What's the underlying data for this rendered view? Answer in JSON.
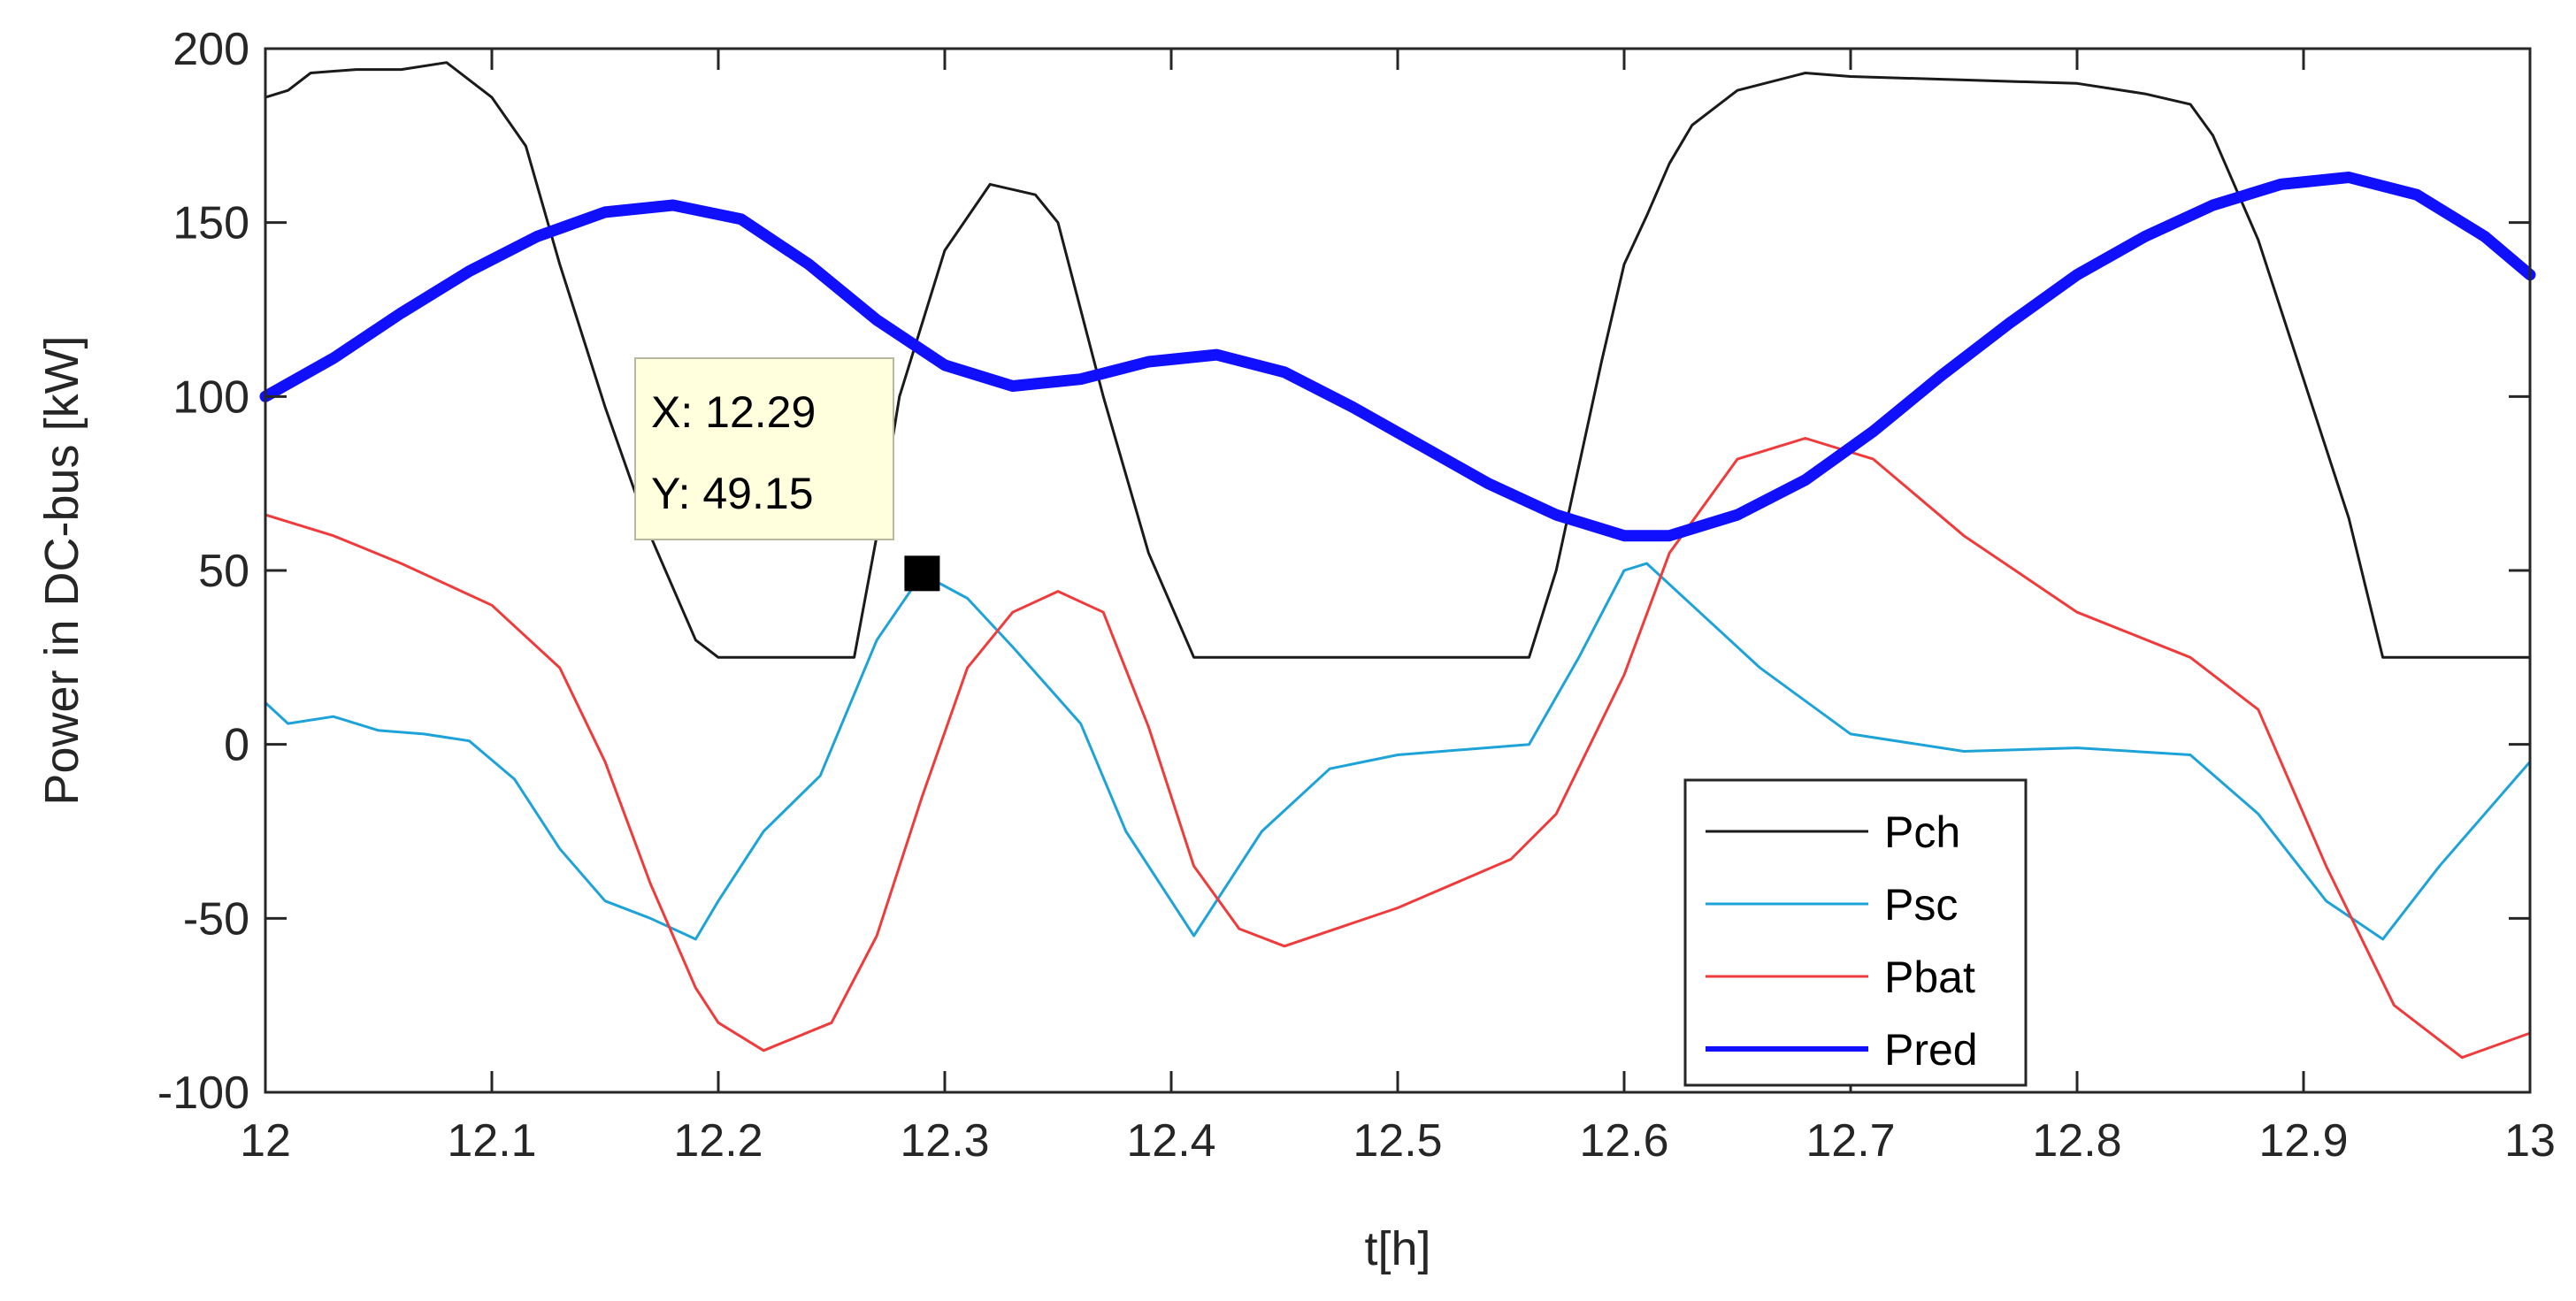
{
  "chart_data": {
    "type": "line",
    "title": "",
    "xlabel": "t[h]",
    "ylabel": "Power in DC-bus [kW]",
    "xlim": [
      12,
      13
    ],
    "ylim": [
      -100,
      200
    ],
    "xticks": [
      12,
      12.1,
      12.2,
      12.3,
      12.4,
      12.5,
      12.6,
      12.7,
      12.8,
      12.9,
      13
    ],
    "xtick_labels": [
      "12",
      "12.1",
      "12.2",
      "12.3",
      "12.4",
      "12.5",
      "12.6",
      "12.7",
      "12.8",
      "12.9",
      "13"
    ],
    "yticks": [
      -100,
      -50,
      0,
      50,
      100,
      150,
      200
    ],
    "ytick_labels": [
      "-100",
      "-50",
      "0",
      "50",
      "100",
      "150",
      "200"
    ],
    "grid": false,
    "legend_position": "bottom-right",
    "series": [
      {
        "name": "Pch",
        "color": "#1a1a1a",
        "x": [
          12.0,
          12.01,
          12.02,
          12.04,
          12.06,
          12.08,
          12.1,
          12.115,
          12.13,
          12.15,
          12.17,
          12.19,
          12.2,
          12.22,
          12.245,
          12.26,
          12.27,
          12.28,
          12.3,
          12.32,
          12.34,
          12.35,
          12.37,
          12.39,
          12.41,
          12.42,
          12.45,
          12.5,
          12.558,
          12.57,
          12.58,
          12.59,
          12.6,
          12.61,
          12.62,
          12.63,
          12.65,
          12.68,
          12.7,
          12.75,
          12.8,
          12.83,
          12.85,
          12.86,
          12.88,
          12.9,
          12.92,
          12.935,
          12.95,
          13.0
        ],
        "values": [
          186,
          188,
          193,
          194,
          194,
          196,
          186,
          172,
          138,
          97,
          60,
          30,
          25,
          25,
          25,
          25,
          60,
          100,
          142,
          161,
          158,
          150,
          100,
          55,
          25,
          25,
          25,
          25,
          25,
          50,
          80,
          110,
          138,
          152,
          167,
          178,
          188,
          193,
          192,
          191,
          190,
          187,
          184,
          175,
          145,
          105,
          65,
          25,
          25,
          25
        ]
      },
      {
        "name": "Psc",
        "color": "#1ea3d8",
        "x": [
          12.0,
          12.01,
          12.03,
          12.05,
          12.07,
          12.09,
          12.11,
          12.13,
          12.15,
          12.17,
          12.19,
          12.2,
          12.22,
          12.245,
          12.27,
          12.29,
          12.31,
          12.33,
          12.36,
          12.38,
          12.41,
          12.44,
          12.47,
          12.5,
          12.558,
          12.58,
          12.6,
          12.61,
          12.63,
          12.66,
          12.7,
          12.75,
          12.8,
          12.85,
          12.88,
          12.91,
          12.935,
          12.96,
          13.0
        ],
        "values": [
          12,
          6,
          8,
          4,
          3,
          1,
          -10,
          -30,
          -45,
          -50,
          -56,
          -45,
          -25,
          -9,
          30,
          49,
          42,
          28,
          6,
          -25,
          -55,
          -25,
          -7,
          -3,
          0,
          25,
          50,
          52,
          40,
          22,
          3,
          -2,
          -1,
          -3,
          -20,
          -45,
          -56,
          -35,
          -5
        ]
      },
      {
        "name": "Pbat",
        "color": "#ef3b3b",
        "x": [
          12.0,
          12.03,
          12.06,
          12.1,
          12.13,
          12.15,
          12.17,
          12.19,
          12.2,
          12.22,
          12.25,
          12.27,
          12.29,
          12.31,
          12.33,
          12.35,
          12.37,
          12.39,
          12.41,
          12.43,
          12.45,
          12.5,
          12.55,
          12.57,
          12.6,
          12.62,
          12.65,
          12.68,
          12.71,
          12.75,
          12.8,
          12.85,
          12.88,
          12.91,
          12.94,
          12.97,
          13.0
        ],
        "values": [
          66,
          60,
          52,
          40,
          22,
          -5,
          -40,
          -70,
          -80,
          -88,
          -80,
          -55,
          -15,
          22,
          38,
          44,
          38,
          5,
          -35,
          -53,
          -58,
          -47,
          -33,
          -20,
          20,
          55,
          82,
          88,
          82,
          60,
          38,
          25,
          10,
          -35,
          -75,
          -90,
          -83
        ]
      },
      {
        "name": "Pred",
        "color": "#1010ff",
        "x": [
          12.0,
          12.03,
          12.06,
          12.09,
          12.12,
          12.15,
          12.18,
          12.21,
          12.24,
          12.27,
          12.3,
          12.33,
          12.36,
          12.39,
          12.42,
          12.45,
          12.48,
          12.51,
          12.54,
          12.57,
          12.6,
          12.62,
          12.65,
          12.68,
          12.71,
          12.74,
          12.77,
          12.8,
          12.83,
          12.86,
          12.89,
          12.92,
          12.95,
          12.98,
          13.0
        ],
        "values": [
          100,
          111,
          124,
          136,
          146,
          153,
          155,
          151,
          138,
          122,
          109,
          103,
          105,
          110,
          112,
          107,
          97,
          86,
          75,
          66,
          60,
          60,
          66,
          76,
          90,
          106,
          121,
          135,
          146,
          155,
          161,
          163,
          158,
          146,
          135
        ]
      }
    ],
    "datatip": {
      "x": 12.29,
      "y": 49.15,
      "x_label": "X: 12.29",
      "y_label": "Y: 49.15"
    }
  }
}
